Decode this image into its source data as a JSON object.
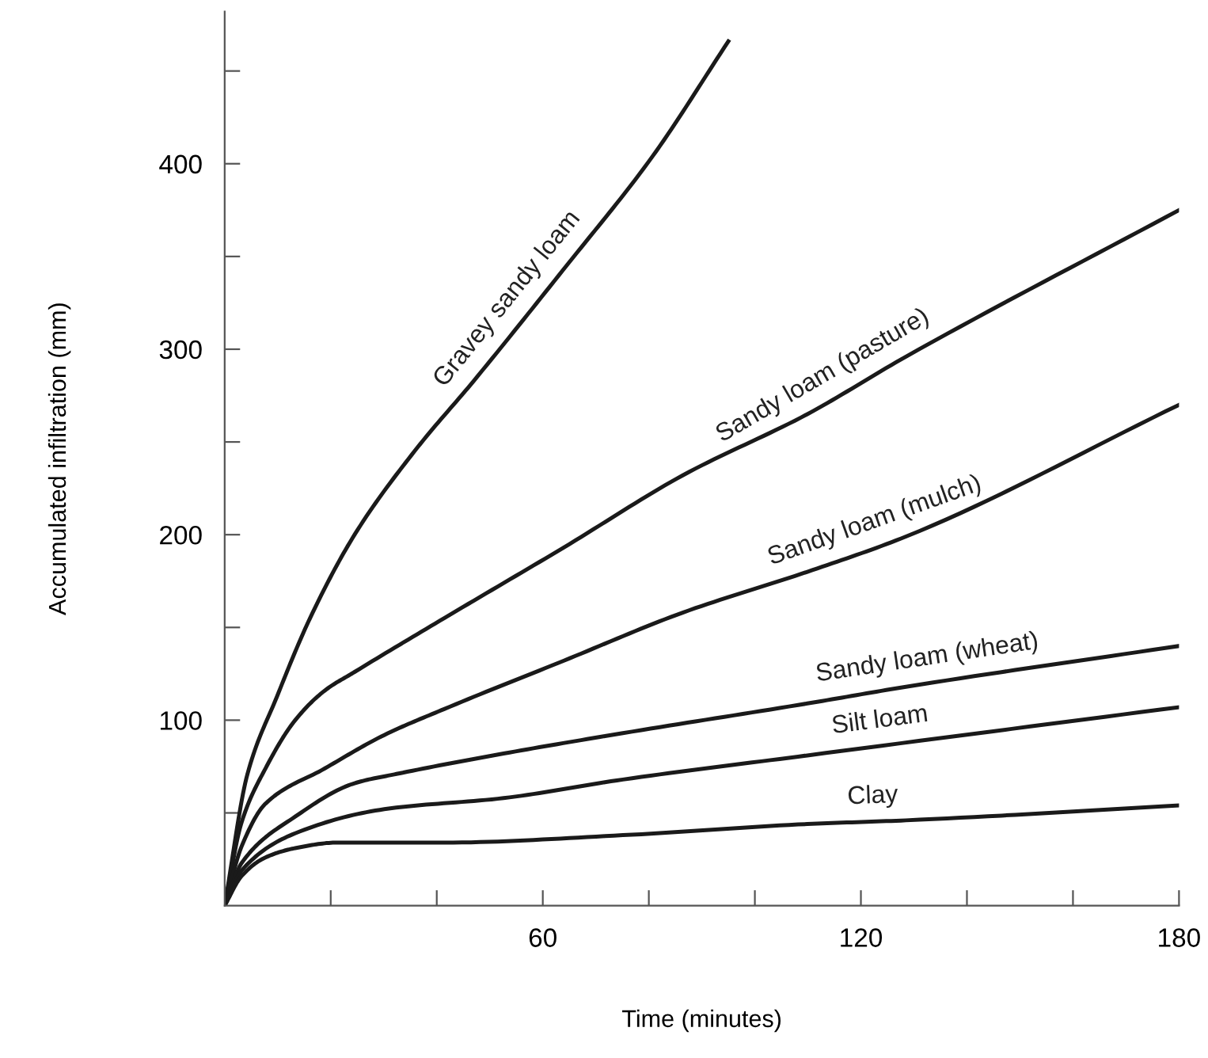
{
  "chart_data": {
    "type": "line",
    "xlabel": "Time (minutes)",
    "ylabel": "Accumulated infiltration (mm)",
    "xlim": [
      0,
      180
    ],
    "ylim": [
      0,
      482
    ],
    "xticks": [
      {
        "value": 20,
        "label": null
      },
      {
        "value": 40,
        "label": null
      },
      60,
      {
        "value": 80,
        "label": null
      },
      {
        "value": 100,
        "label": null
      },
      120,
      {
        "value": 140,
        "label": null
      },
      {
        "value": 160,
        "label": null
      },
      180
    ],
    "yticks": [
      {
        "value": 50,
        "label": null
      },
      100,
      {
        "value": 150,
        "label": null
      },
      200,
      {
        "value": 250,
        "label": null
      },
      300,
      {
        "value": 350,
        "label": null
      },
      400,
      {
        "value": 450,
        "label": null
      }
    ],
    "grid": false,
    "legend": false,
    "marker": "none",
    "line_style": "solid",
    "series": [
      {
        "name": "Gravey sandy loam",
        "color": "#1a1a1a",
        "x": [
          0,
          4.3,
          9.9,
          16.1,
          24.5,
          35.8,
          47.0,
          63.9,
          80.7,
          95.0
        ],
        "values": [
          0,
          71,
          113,
          155,
          200,
          245,
          283,
          343,
          404,
          466
        ]
      },
      {
        "name": "Sandy loam (pasture)",
        "color": "#1a1a1a",
        "x": [
          0,
          3.2,
          7.7,
          13.3,
          18.9,
          24.5,
          41.4,
          63.9,
          86.4,
          109.9,
          128.5,
          180
        ],
        "values": [
          0,
          45,
          74,
          100,
          116,
          126,
          155,
          193,
          232,
          265,
          296,
          375
        ]
      },
      {
        "name": "Sandy loam (mulch)",
        "color": "#1a1a1a",
        "x": [
          0,
          3.2,
          7.7,
          18.9,
          30.1,
          41.4,
          63.9,
          86.4,
          109.9,
          128.5,
          180
        ],
        "values": [
          0,
          32,
          55,
          74,
          92,
          106,
          132,
          158,
          180,
          199,
          270
        ]
      },
      {
        "name": "Sandy loam (wheat)",
        "color": "#1a1a1a",
        "x": [
          0,
          3.2,
          13.3,
          24.5,
          32.4,
          52.6,
          75.1,
          109.9,
          128.5,
          180
        ],
        "values": [
          0,
          23,
          48,
          66,
          71,
          82,
          93,
          109,
          118,
          140
        ]
      },
      {
        "name": "Silt loam",
        "color": "#1a1a1a",
        "x": [
          0,
          3.2,
          13.3,
          30.1,
          52.6,
          75.1,
          109.9,
          180
        ],
        "values": [
          0,
          19,
          39,
          52,
          58,
          68,
          81,
          107
        ]
      },
      {
        "name": "Clay",
        "color": "#1a1a1a",
        "x": [
          0,
          3.2,
          7.7,
          13.3,
          21.2,
          41.4,
          75.1,
          109.9,
          128.5,
          180
        ],
        "values": [
          0,
          16,
          26,
          31,
          34,
          34,
          38,
          44,
          46,
          54
        ]
      }
    ]
  }
}
